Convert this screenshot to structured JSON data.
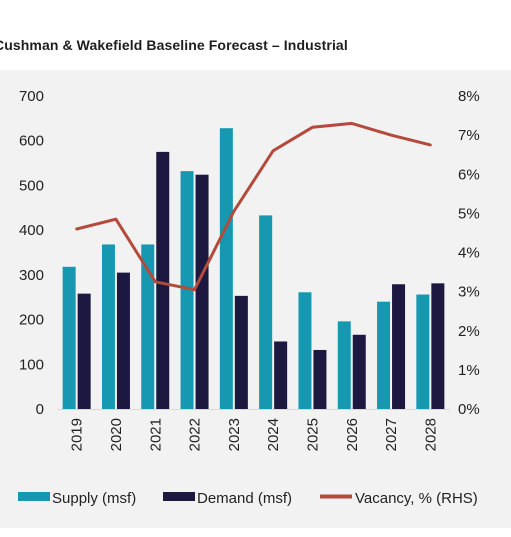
{
  "title": "Cushman & Wakefield Baseline Forecast – Industrial",
  "chart_data": {
    "type": "bar",
    "categories": [
      "2019",
      "2020",
      "2021",
      "2022",
      "2023",
      "2024",
      "2025",
      "2026",
      "2027",
      "2028"
    ],
    "series": [
      {
        "name": "Supply (msf)",
        "type": "bar",
        "axis": "left",
        "color": "#1699b0",
        "values": [
          318,
          368,
          368,
          532,
          628,
          433,
          261,
          196,
          240,
          256
        ]
      },
      {
        "name": "Demand (msf)",
        "type": "bar",
        "axis": "left",
        "color": "#1c1840",
        "values": [
          258,
          305,
          575,
          524,
          253,
          151,
          132,
          166,
          279,
          281
        ]
      },
      {
        "name": "Vacancy, % (RHS)",
        "type": "line",
        "axis": "right",
        "color": "#b34a3c",
        "values": [
          4.6,
          4.85,
          3.25,
          3.05,
          5.05,
          6.6,
          7.2,
          7.3,
          7.0,
          6.75
        ]
      }
    ],
    "left_ticks": [
      "0",
      "100",
      "200",
      "300",
      "400",
      "500",
      "600",
      "700"
    ],
    "right_ticks": [
      "0%",
      "1%",
      "2%",
      "3%",
      "4%",
      "5%",
      "6%",
      "7%",
      "8%"
    ],
    "ylim_left": [
      0,
      700
    ],
    "ylim_right": [
      0,
      8
    ],
    "grid": false,
    "legend_position": "bottom"
  }
}
